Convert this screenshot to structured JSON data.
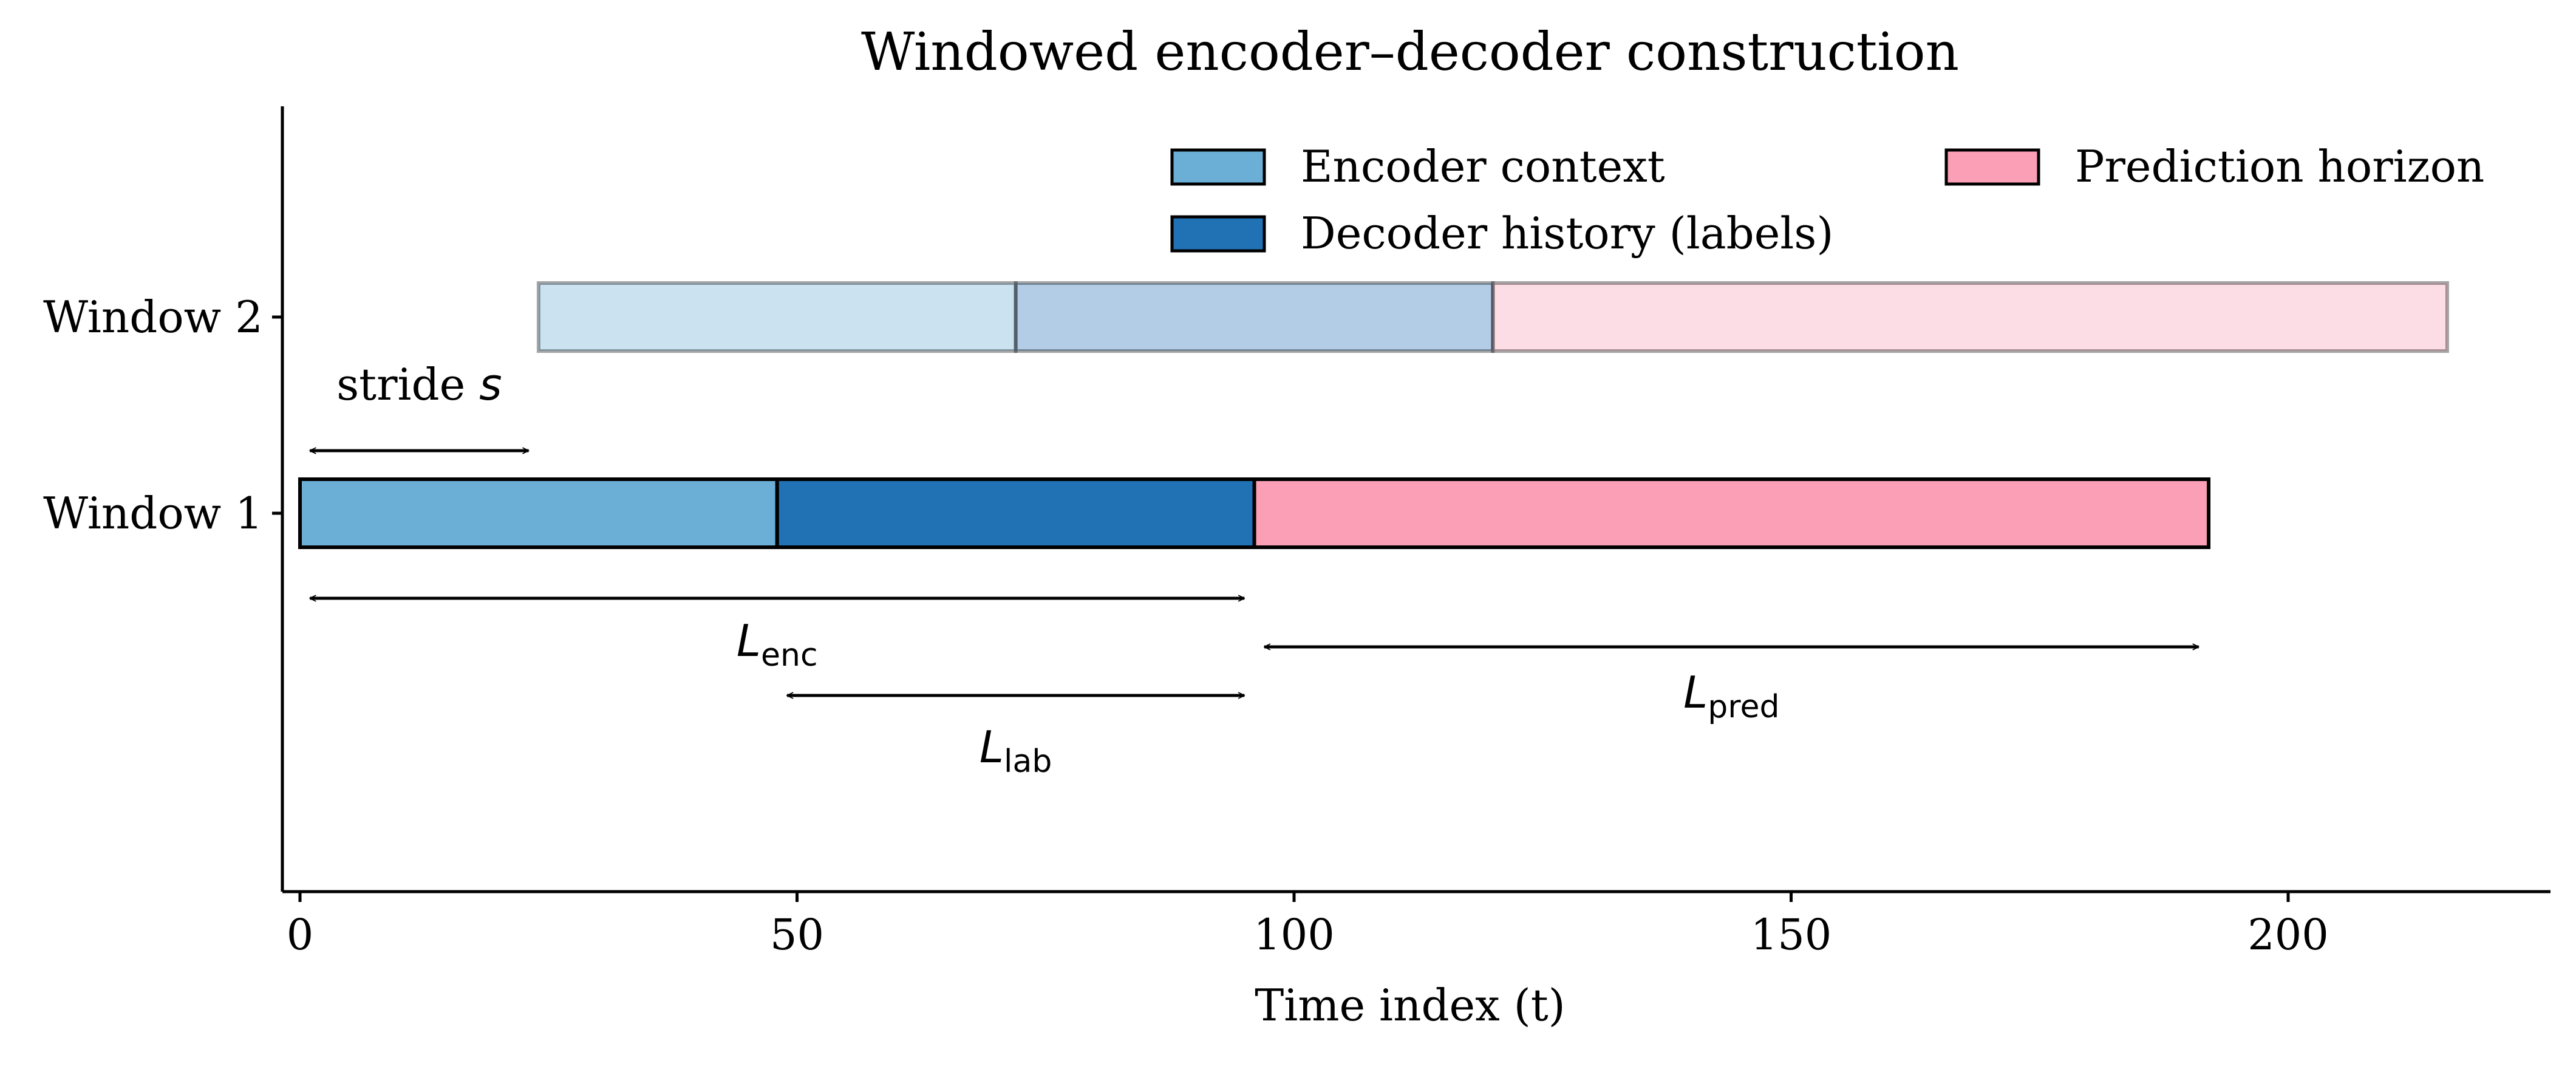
{
  "chart_data": {
    "type": "bar",
    "orientation": "horizontal",
    "title": "Windowed encoder–decoder construction",
    "xlabel": "Time index (t)",
    "ylabel": "",
    "xlim": [
      -2,
      226
    ],
    "xticks": [
      0,
      50,
      100,
      150,
      200
    ],
    "xtick_labels": [
      "0",
      "50",
      "100",
      "150",
      "200"
    ],
    "categories": [
      "Window 1",
      "Window 2"
    ],
    "legend": {
      "placement": "top-right",
      "entries": [
        {
          "label": "Encoder context",
          "color": "#6baed6"
        },
        {
          "label": "Decoder history (labels)",
          "color": "#2171b5"
        },
        {
          "label": "Prediction horizon",
          "color": "#fa9fb5"
        }
      ]
    },
    "series": [
      {
        "name": "Encoder context",
        "color": "#6baed6",
        "values": [
          {
            "window": "Window 1",
            "start": 0,
            "end": 48
          },
          {
            "window": "Window 2",
            "start": 24,
            "end": 72
          }
        ]
      },
      {
        "name": "Decoder history (labels)",
        "color": "#2171b5",
        "values": [
          {
            "window": "Window 1",
            "start": 48,
            "end": 96
          },
          {
            "window": "Window 2",
            "start": 72,
            "end": 120
          }
        ]
      },
      {
        "name": "Prediction horizon",
        "color": "#fa9fb5",
        "values": [
          {
            "window": "Window 1",
            "start": 96,
            "end": 192
          },
          {
            "window": "Window 2",
            "start": 120,
            "end": 216
          }
        ]
      }
    ],
    "annotations": [
      {
        "id": "stride",
        "label": "stride",
        "symbol": "s",
        "from": 1,
        "to": 23
      },
      {
        "id": "enc",
        "symbol": "L",
        "subscript": "enc",
        "from": 1,
        "to": 95
      },
      {
        "id": "lab",
        "symbol": "L",
        "subscript": "lab",
        "from": 49,
        "to": 95
      },
      {
        "id": "pred",
        "symbol": "L",
        "subscript": "pred",
        "from": 97,
        "to": 191
      }
    ],
    "grid": false
  }
}
